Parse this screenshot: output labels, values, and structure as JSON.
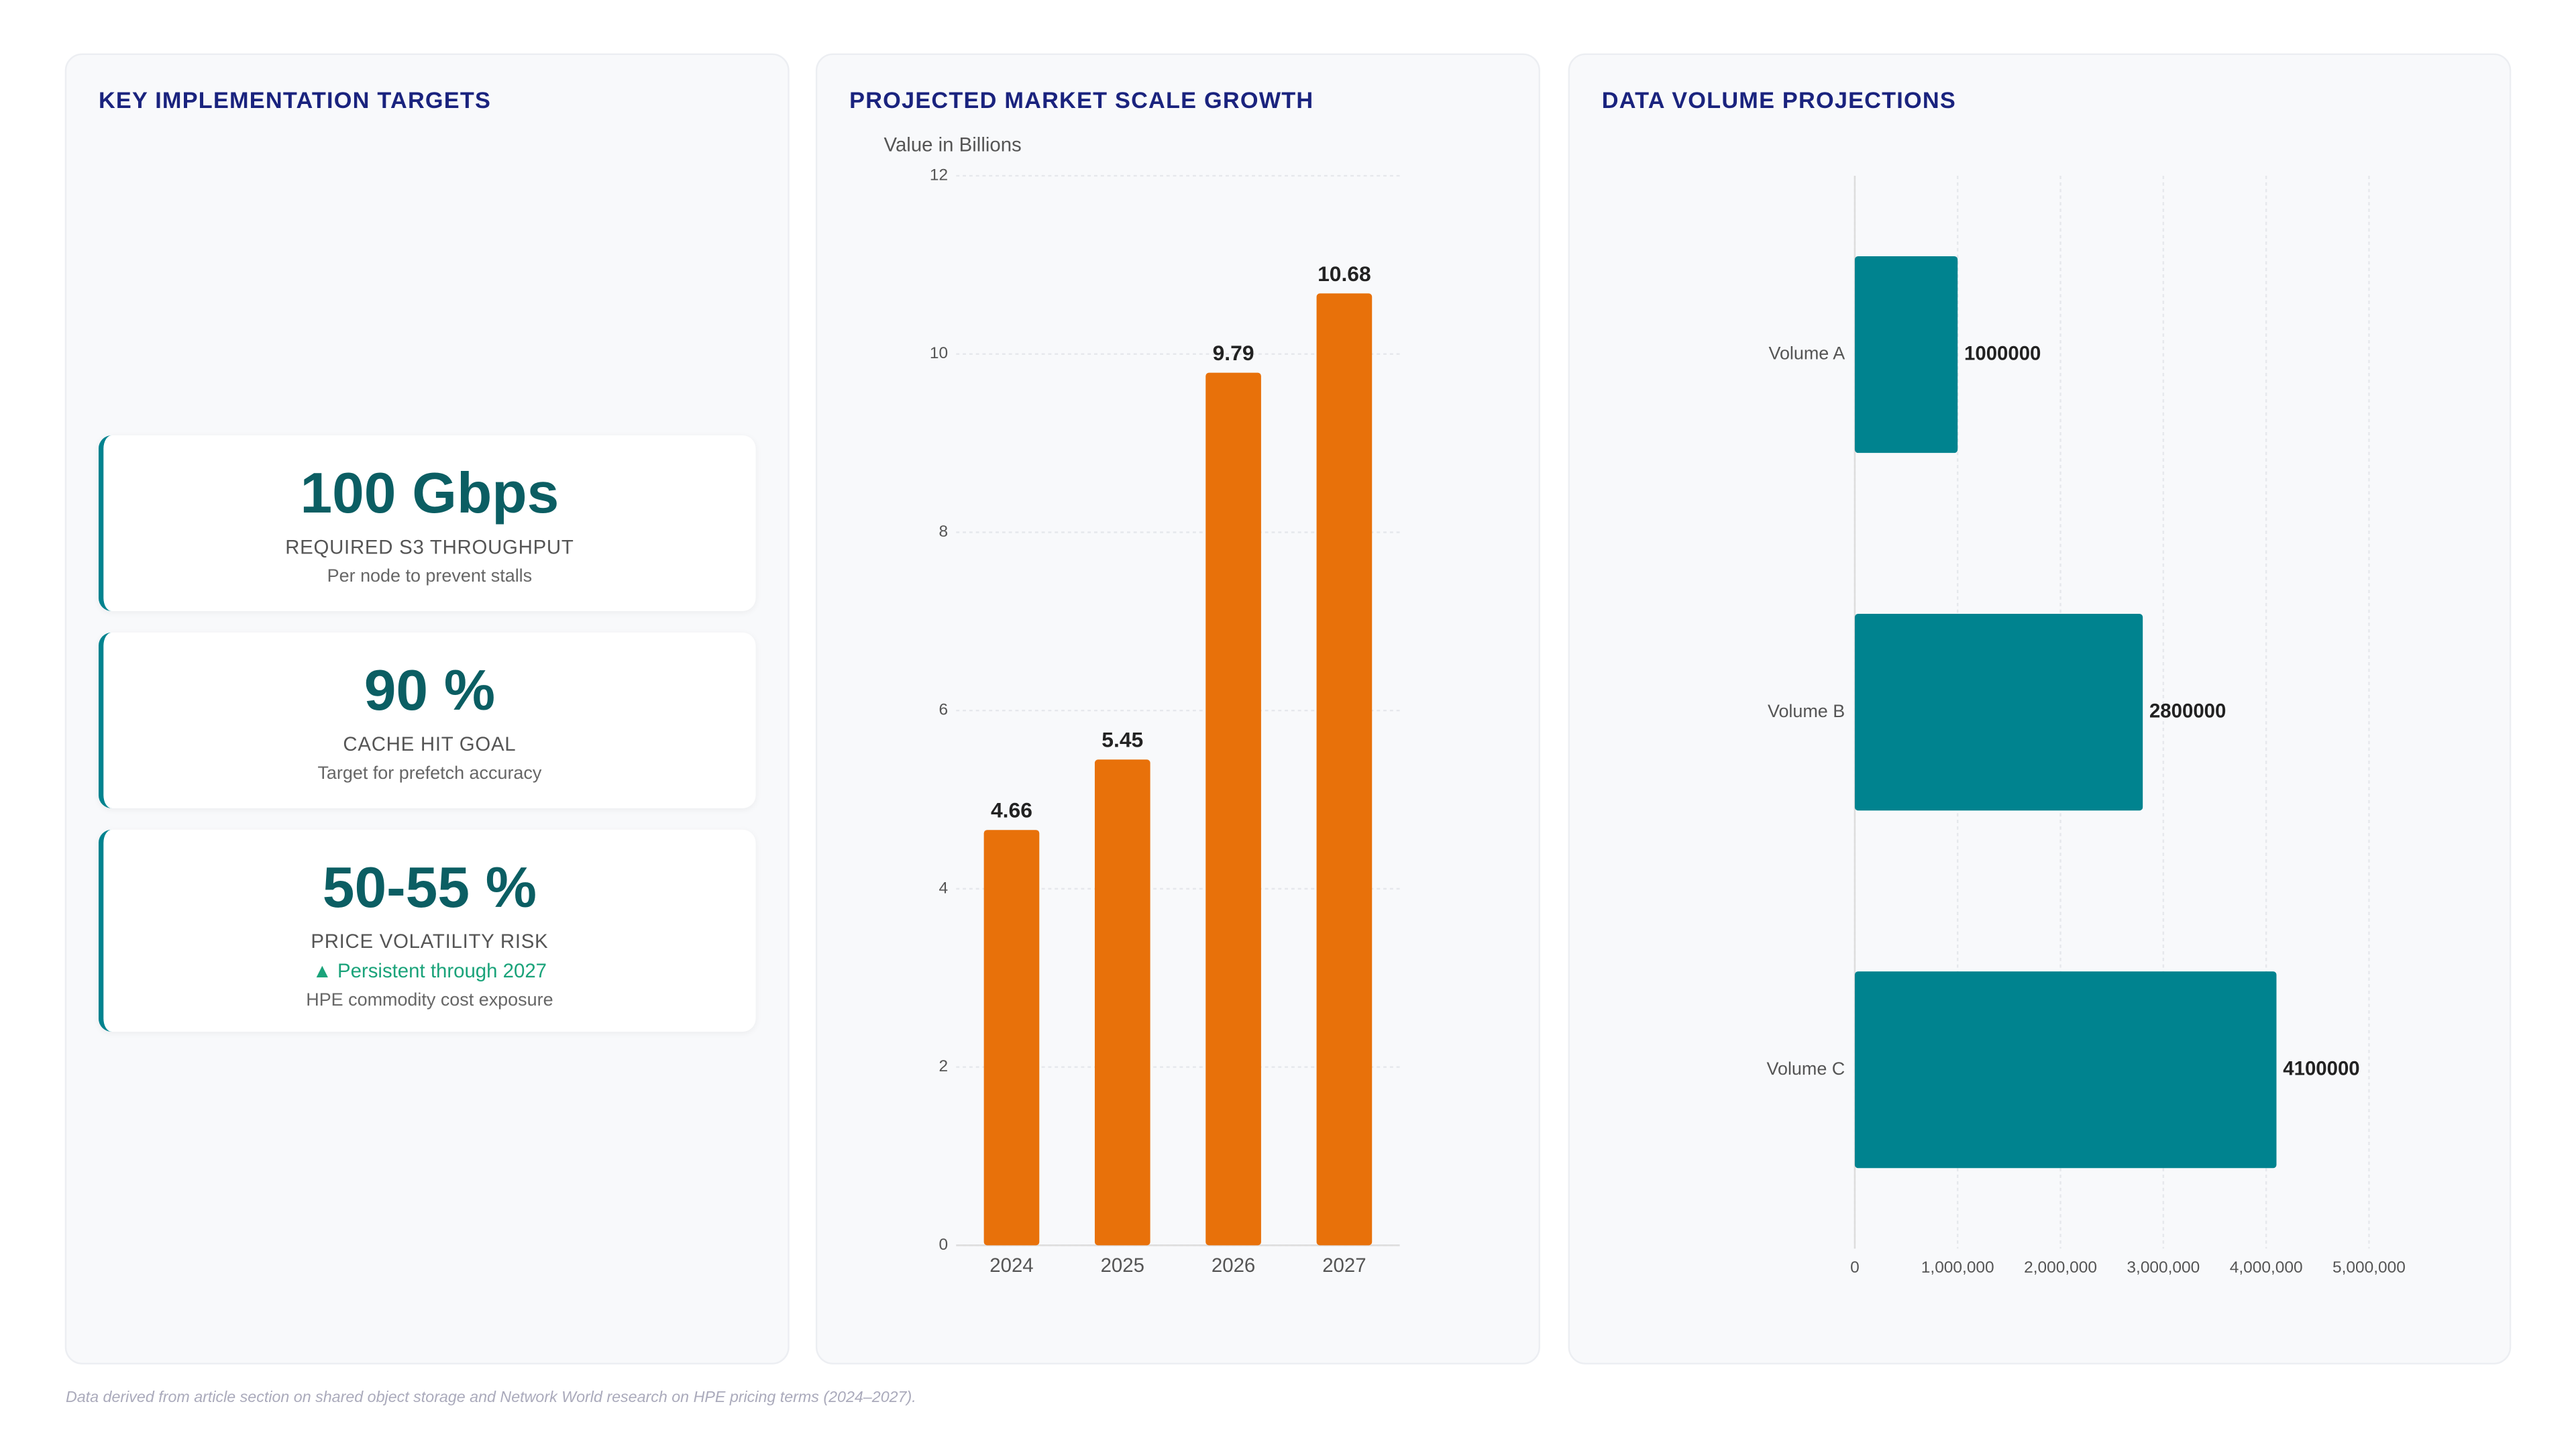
{
  "kpi_panel": {
    "title": "KEY IMPLEMENTATION TARGETS",
    "cards": [
      {
        "value": "100 Gbps",
        "label": "REQUIRED S3 THROUGHPUT",
        "note": "Per node to prevent stalls"
      },
      {
        "value": "90 %",
        "label": "CACHE HIT GOAL",
        "note": "Target for prefetch accuracy"
      },
      {
        "value": "50-55 %",
        "label": "PRICE VOLATILITY RISK",
        "trend": "▲ Persistent through 2027",
        "note": "HPE commodity cost exposure"
      }
    ]
  },
  "chart_data": [
    {
      "type": "bar",
      "title": "PROJECTED MARKET SCALE GROWTH",
      "y_label": "Value in Billions",
      "categories": [
        "2024",
        "2025",
        "2026",
        "2027"
      ],
      "values": [
        4.66,
        5.45,
        9.79,
        10.68
      ],
      "color": "#e8710a",
      "ylim": [
        0,
        12
      ],
      "yticks": [
        0,
        2,
        4,
        6,
        8,
        10,
        12
      ],
      "grid": true
    },
    {
      "type": "hbar",
      "title": "DATA VOLUME PROJECTIONS",
      "categories": [
        "Volume A",
        "Volume B",
        "Volume C"
      ],
      "values": [
        1000000,
        2800000,
        4100000
      ],
      "color": "#00838f",
      "xlim": [
        0,
        5000000
      ],
      "xticks": [
        0,
        {
          "value": 1000000,
          "label": "1,000,000"
        },
        {
          "value": 2000000,
          "label": "2,000,000"
        },
        {
          "value": 3000000,
          "label": "3,000,000"
        },
        {
          "value": 4000000,
          "label": "4,000,000"
        },
        {
          "value": 5000000,
          "label": "5,000,000"
        }
      ],
      "grid": true
    }
  ],
  "footnote": "Data derived from article section on shared object storage and Network World research on HPE pricing terms (2024–2027)."
}
